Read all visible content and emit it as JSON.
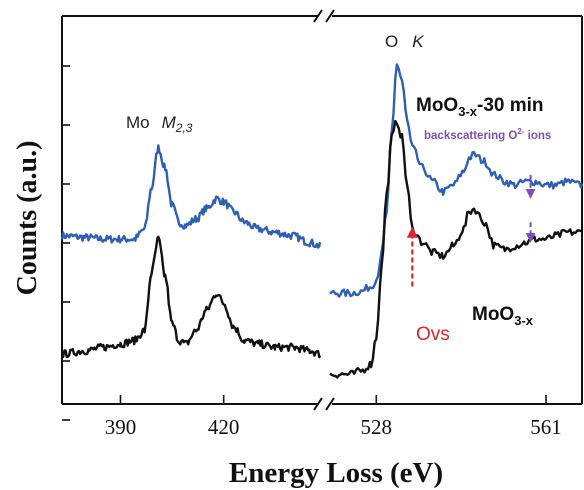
{
  "chart_data": {
    "type": "line",
    "title": "",
    "xlabel": "Energy Loss (eV)",
    "ylabel": "Counts (a.u.)",
    "broken_x_axis": true,
    "panels": [
      {
        "name": "Mo M2,3 edge",
        "xlim": [
          373,
          448
        ],
        "xticks": [
          390,
          420
        ],
        "edge_label": {
          "element": "Mo",
          "edge": "M",
          "subscript": "2,3"
        }
      },
      {
        "name": "O K edge",
        "xlim": [
          519,
          568
        ],
        "xticks": [
          528,
          561
        ],
        "edge_label": {
          "element": "O",
          "edge": "K"
        }
      }
    ],
    "ylim": [
      0,
      1
    ],
    "grid": false,
    "series": [
      {
        "name": "MoO3-x-30 min",
        "label_main": "MoO",
        "label_sub": "3-x",
        "label_suffix": "-30 min",
        "color": "#2f5fb3",
        "panel1": {
          "x": [
            373,
            380,
            385,
            390,
            394,
            397,
            399,
            401,
            403,
            405,
            407,
            409,
            412,
            415,
            418,
            420,
            423,
            426,
            430,
            435,
            440,
            445,
            448
          ],
          "y": [
            0.48,
            0.475,
            0.47,
            0.47,
            0.47,
            0.5,
            0.62,
            0.74,
            0.68,
            0.57,
            0.52,
            0.51,
            0.53,
            0.56,
            0.59,
            0.58,
            0.55,
            0.52,
            0.5,
            0.49,
            0.48,
            0.46,
            0.45
          ]
        },
        "panel2": {
          "x": [
            519,
            521,
            523,
            525,
            527,
            528,
            529,
            530,
            531,
            532,
            533,
            534,
            535,
            537,
            539,
            541,
            543,
            545,
            546,
            547,
            549,
            551,
            553,
            555,
            557,
            559,
            561,
            563,
            565,
            568
          ],
          "y": [
            0.31,
            0.31,
            0.31,
            0.315,
            0.33,
            0.35,
            0.42,
            0.55,
            0.78,
            0.99,
            0.94,
            0.82,
            0.74,
            0.68,
            0.64,
            0.61,
            0.63,
            0.67,
            0.71,
            0.72,
            0.7,
            0.66,
            0.64,
            0.63,
            0.64,
            0.64,
            0.63,
            0.63,
            0.64,
            0.63
          ]
        }
      },
      {
        "name": "MoO3-x",
        "label_main": "MoO",
        "label_sub": "3-x",
        "label_suffix": "",
        "color": "#111111",
        "panel1": {
          "x": [
            373,
            380,
            385,
            390,
            394,
            397,
            399,
            401,
            403,
            405,
            407,
            409,
            412,
            415,
            418,
            420,
            423,
            426,
            430,
            435,
            440,
            445,
            448
          ],
          "y": [
            0.13,
            0.14,
            0.15,
            0.16,
            0.17,
            0.2,
            0.37,
            0.47,
            0.36,
            0.22,
            0.17,
            0.16,
            0.2,
            0.26,
            0.31,
            0.28,
            0.21,
            0.17,
            0.16,
            0.15,
            0.15,
            0.14,
            0.13
          ]
        },
        "panel2": {
          "x": [
            519,
            521,
            523,
            525,
            527,
            528,
            529,
            530,
            531,
            532,
            533,
            534,
            535,
            537,
            539,
            541,
            543,
            545,
            546,
            547,
            549,
            551,
            553,
            555,
            557,
            559,
            561,
            563,
            565,
            568
          ],
          "y": [
            0.07,
            0.07,
            0.07,
            0.08,
            0.1,
            0.18,
            0.38,
            0.6,
            0.77,
            0.82,
            0.77,
            0.63,
            0.5,
            0.46,
            0.43,
            0.42,
            0.45,
            0.5,
            0.55,
            0.56,
            0.52,
            0.45,
            0.44,
            0.45,
            0.46,
            0.47,
            0.47,
            0.48,
            0.49,
            0.49
          ]
        }
      }
    ],
    "annotations": [
      {
        "text": "backscattering O",
        "sup": "2-",
        "suffix": " ions",
        "color": "#7a52b3",
        "panel": 2,
        "x": 558,
        "arrows": [
          [
            0.66,
            0.595
          ],
          [
            0.52,
            0.465
          ]
        ]
      },
      {
        "text": "Ovs",
        "color": "#e0232e",
        "panel": 2,
        "x": 535,
        "arrow": [
          0.33,
          0.5
        ]
      }
    ]
  }
}
